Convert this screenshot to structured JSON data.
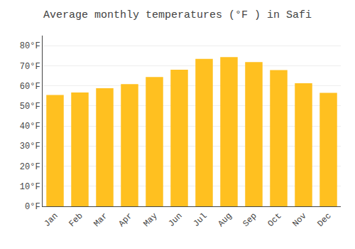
{
  "chart_data": {
    "type": "bar",
    "title": "Average monthly temperatures (°F ) in Safi",
    "categories": [
      "Jan",
      "Feb",
      "Mar",
      "Apr",
      "May",
      "Jun",
      "Jul",
      "Aug",
      "Sep",
      "Oct",
      "Nov",
      "Dec"
    ],
    "values": [
      55.4,
      56.7,
      58.8,
      60.8,
      64.4,
      68.0,
      73.4,
      74.3,
      71.8,
      67.8,
      61.3,
      56.5
    ],
    "color": "#FFC020",
    "ylim": [
      0,
      85
    ],
    "yticks": [
      {
        "value": 0,
        "label": "0°F"
      },
      {
        "value": 10,
        "label": "10°F"
      },
      {
        "value": 20,
        "label": "20°F"
      },
      {
        "value": 30,
        "label": "30°F"
      },
      {
        "value": 40,
        "label": "40°F"
      },
      {
        "value": 50,
        "label": "50°F"
      },
      {
        "value": 60,
        "label": "60°F"
      },
      {
        "value": 70,
        "label": "70°F"
      },
      {
        "value": 80,
        "label": "80°F"
      }
    ],
    "grid": true
  }
}
